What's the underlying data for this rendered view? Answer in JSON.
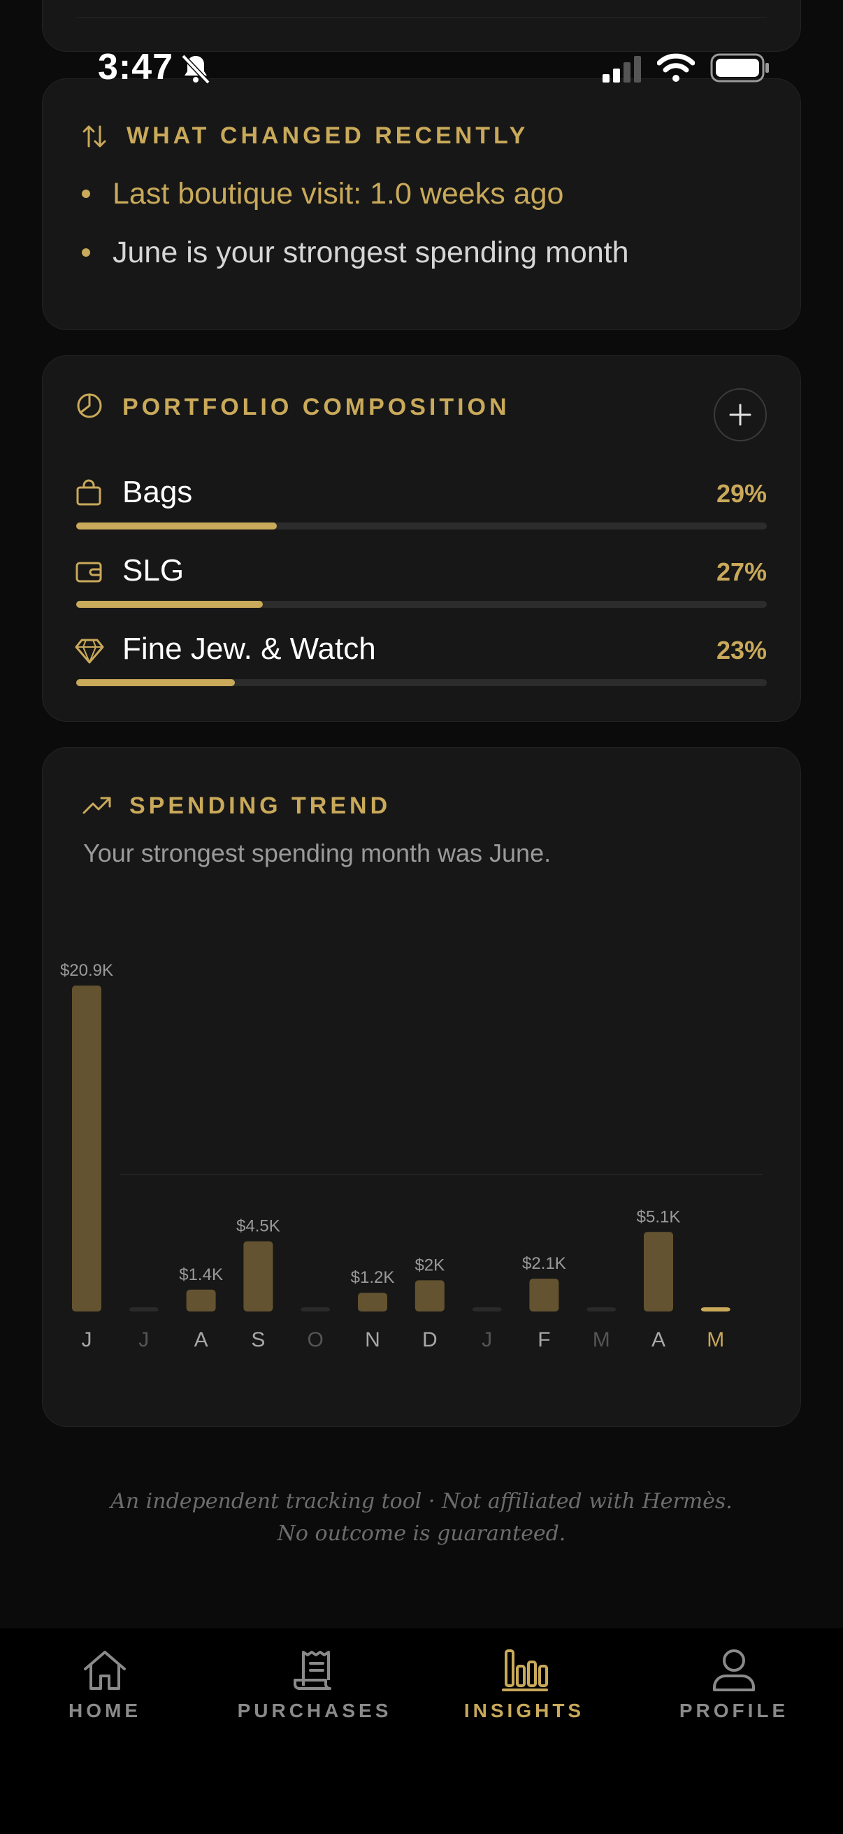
{
  "status": {
    "time": "3:47"
  },
  "recent": {
    "title": "WHAT CHANGED RECENTLY",
    "items": [
      "Last boutique visit: 1.0 weeks ago",
      "June is your strongest spending month"
    ]
  },
  "portfolio": {
    "title": "PORTFOLIO COMPOSITION",
    "items": [
      {
        "label": "Bags",
        "pct": "29%",
        "value": 29,
        "icon": "bag-icon"
      },
      {
        "label": "SLG",
        "pct": "27%",
        "value": 27,
        "icon": "wallet-icon"
      },
      {
        "label": "Fine Jew. & Watch",
        "pct": "23%",
        "value": 23,
        "icon": "diamond-icon"
      }
    ]
  },
  "trend": {
    "title": "SPENDING TREND",
    "subtitle": "Your strongest spending month was June."
  },
  "chart_data": {
    "type": "bar",
    "categories": [
      "J",
      "J",
      "A",
      "S",
      "O",
      "N",
      "D",
      "J",
      "F",
      "M",
      "A",
      "M"
    ],
    "values": [
      20.9,
      0,
      1.4,
      4.5,
      0,
      1.2,
      2.0,
      0,
      2.1,
      0,
      5.1,
      0.2
    ],
    "labels": [
      "$20.9K",
      "",
      "$1.4K",
      "$4.5K",
      "",
      "$1.2K",
      "$2K",
      "",
      "$2.1K",
      "",
      "$5.1K",
      ""
    ],
    "unit": "$K",
    "highlight_index": 11,
    "colors": {
      "bar": "#645330",
      "highlight": "#c9a95a",
      "empty": "#2a2a2a"
    }
  },
  "footer": {
    "line1": "An independent tracking tool · Not affiliated with Hermès.",
    "line2": "No outcome is guaranteed."
  },
  "nav": [
    {
      "label": "HOME",
      "icon": "home-icon"
    },
    {
      "label": "PURCHASES",
      "icon": "receipt-icon"
    },
    {
      "label": "INSIGHTS",
      "icon": "bar-chart-icon",
      "active": true
    },
    {
      "label": "PROFILE",
      "icon": "user-icon"
    }
  ]
}
